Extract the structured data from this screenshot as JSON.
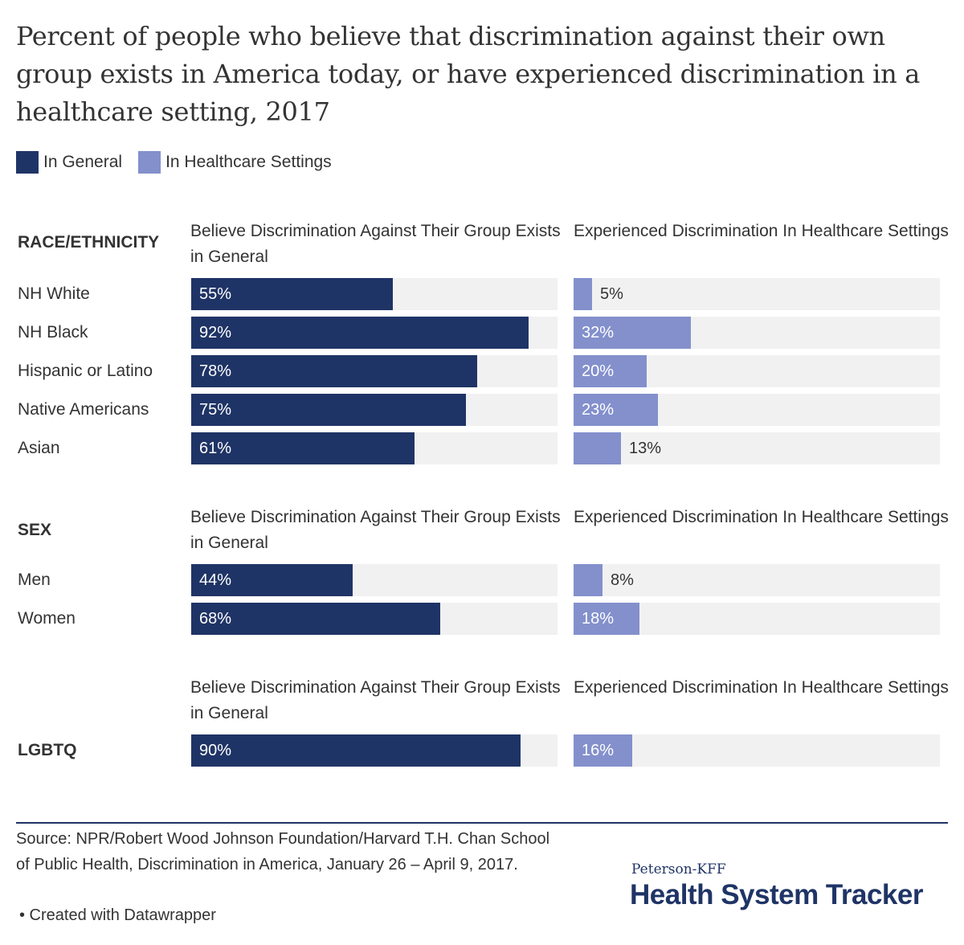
{
  "title": "Percent of people who believe that discrimination against their own group exists in America today, or have experienced discrimination in a healthcare setting, 2017",
  "legend": [
    {
      "label": "In General",
      "color": "#1f3466"
    },
    {
      "label": "In Healthcare Settings",
      "color": "#8390cc"
    }
  ],
  "colors": {
    "general": "#1f3466",
    "healthcare": "#8390cc",
    "track": "#f1f1f1",
    "label_on_bar": "#ffffff",
    "label_off_bar": "#333333"
  },
  "col_headers": {
    "general": "Believe Discrimination Against Their Group Exists in General",
    "healthcare": "Experienced Discrimination In Healthcare Settings"
  },
  "chart_data": {
    "type": "bar",
    "orientation": "horizontal",
    "xlim": [
      0,
      100
    ],
    "unit": "%",
    "series_names": [
      "In General",
      "In Healthcare Settings"
    ],
    "groups": [
      {
        "label": "RACE/ETHNICITY",
        "rows": [
          {
            "label": "NH White",
            "general": 55,
            "healthcare": 5
          },
          {
            "label": "NH Black",
            "general": 92,
            "healthcare": 32
          },
          {
            "label": "Hispanic or Latino",
            "general": 78,
            "healthcare": 20
          },
          {
            "label": "Native Americans",
            "general": 75,
            "healthcare": 23
          },
          {
            "label": "Asian",
            "general": 61,
            "healthcare": 13
          }
        ]
      },
      {
        "label": "SEX",
        "rows": [
          {
            "label": "Men",
            "general": 44,
            "healthcare": 8
          },
          {
            "label": "Women",
            "general": 68,
            "healthcare": 18
          }
        ]
      },
      {
        "label": "LGBTQ",
        "rows": [
          {
            "label": "",
            "general": 90,
            "healthcare": 16
          }
        ]
      }
    ]
  },
  "source": "Source: NPR/Robert Wood Johnson Foundation/Harvard T.H. Chan School of Public Health, Discrimination in America, January 26 – April 9, 2017.",
  "credit": "• Created with Datawrapper",
  "logo": {
    "small": "Peterson-KFF",
    "big": "Health System Tracker"
  }
}
